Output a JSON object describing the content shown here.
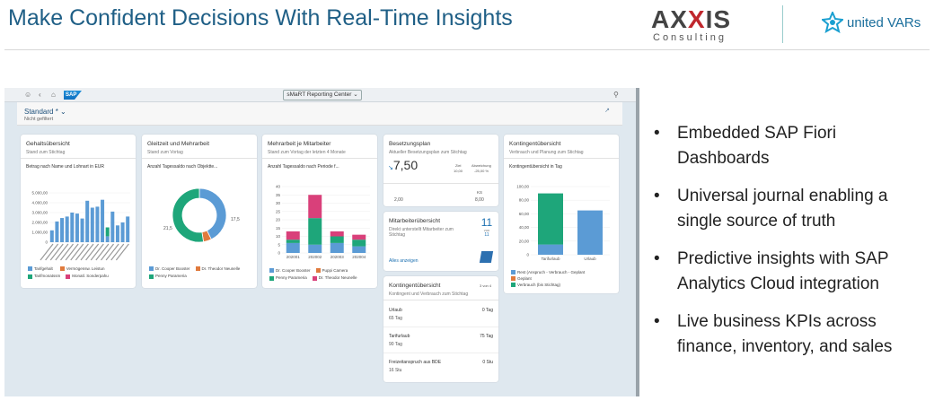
{
  "slide": {
    "title": "Make Confident Decisions With Real-Time Insights",
    "axxis_logo": "AXXIS",
    "axxis_sub": "Consulting",
    "united_vars": "united VARs",
    "bullets": [
      "Embedded SAP Fiori Dashboards",
      "Universal journal enabling a single source of truth",
      "Predictive insights with SAP Analytics Cloud integration",
      "Live business KPIs across finance, inventory, and sales"
    ]
  },
  "shell": {
    "logo": "SAP",
    "app_title": "sMaRT Reporting Center"
  },
  "filter": {
    "variant": "Standard *",
    "status": "Nicht gefiltert"
  },
  "cards": {
    "gehalt": {
      "title": "Gehaltsübersicht",
      "subtitle": "Stand zum Stichtag",
      "chart_title": "Betrag nach Name und Lohnart in EUR",
      "legend": [
        "Tarifgehalt",
        "Vermögensw. Leistun",
        "Tarifmonatssm",
        "Monatl. Sonderpahu"
      ]
    },
    "gleitzeit": {
      "title": "Gleitzeit und Mehrarbeit",
      "subtitle": "Stand zum Vortag",
      "chart_title": "Anzahl Tagessaldo nach Objektte...",
      "label_left": "21,5",
      "label_right": "17,5",
      "legend": [
        "Dr. Cooper Booster",
        "Dr. Theodor Neunelle",
        "Penny Parameria"
      ]
    },
    "mehrarbeit": {
      "title": "Mehrarbeit je Mitarbeiter",
      "subtitle": "Stand zum Vortag der letzten 4 Monate",
      "chart_title": "Anzahl Tagessaldo nach Periode f...",
      "legend": [
        "Dr. Cooper Booster",
        "Puppi Camera",
        "Penny Parameria",
        "Dr. Theodor Neunelle"
      ]
    },
    "besetzung": {
      "title": "Besetzungsplan",
      "subtitle": "Aktueller Besetzungsplan zum Stichtag",
      "kpi": "7,50",
      "ziel_label": "Ziel",
      "ziel_value": "10,00",
      "abw_label": "Abweichung",
      "abw_value": "-25,00 %",
      "left_value": "2,00",
      "right_top": "KS",
      "right_value": "8,00"
    },
    "mitarbeiter": {
      "title": "Mitarbeiterübersicht",
      "subtitle": "Direkt unterstellt Mitarbeiter zum Stichtag",
      "cal_number": "11",
      "cal_text": "von",
      "cal_sub": "11",
      "link": "Alles anzeigen"
    },
    "kontingent_list": {
      "title": "Kontingentübersicht",
      "subtitle": "Kontingent und Verbrauch zum Stichtag",
      "counter": "3 von 4",
      "rows": [
        {
          "name": "Urlaub",
          "value": "0 Tag",
          "sub": "65 Tag"
        },
        {
          "name": "Tarifurlaub",
          "value": "75 Tag",
          "sub": "90 Tag"
        },
        {
          "name": "Freizeitanspruch aus BDE",
          "value": "0 Stu",
          "sub": "16 Stu"
        }
      ]
    },
    "kontingent_chart": {
      "title": "Kontingentübersicht",
      "subtitle": "Verbrauch und Planung zum Stichtag",
      "chart_title": "Kontingentübersicht in Tag",
      "legend": [
        "Rest (Anspruch - Verbrauch - Geplant",
        "Geplant",
        "Verbrauch (bis Stichtag)"
      ]
    }
  },
  "chart_data": [
    {
      "type": "bar",
      "title": "Betrag nach Name und Lohnart in EUR",
      "ylim": [
        0,
        5000
      ],
      "y_ticks": [
        "0",
        "1.000,00",
        "2.000,00",
        "3.000,00",
        "4.000,00",
        "5.000,00"
      ],
      "series": [
        {
          "name": "Tarifgehalt",
          "values": [
            1200,
            2100,
            2450,
            2600,
            3000,
            2900,
            2400,
            4200,
            3500,
            3600,
            4300,
            600,
            3100,
            1700,
            2000,
            2600
          ]
        },
        {
          "name": "Vermögensw. Leistun",
          "values": [
            0,
            0,
            0,
            0,
            0,
            0,
            0,
            0,
            0,
            0,
            0,
            0,
            0,
            0,
            0,
            0
          ]
        },
        {
          "name": "Tarifmonatssm",
          "values": [
            0,
            0,
            0,
            0,
            0,
            0,
            0,
            0,
            0,
            0,
            0,
            900,
            0,
            0,
            0,
            0
          ]
        },
        {
          "name": "Monatl. Sonderpahu",
          "values": [
            0,
            0,
            0,
            0,
            0,
            0,
            0,
            0,
            0,
            0,
            0,
            0,
            0,
            0,
            0,
            0
          ]
        }
      ]
    },
    {
      "type": "pie",
      "title": "Anzahl Tagessaldo nach Objektte...",
      "categories": [
        "Dr. Cooper Booster",
        "Dr. Theodor Neunelle",
        "Penny Parameria"
      ],
      "values": [
        17.5,
        2,
        21.5
      ]
    },
    {
      "type": "bar",
      "title": "Anzahl Tagessaldo nach Periode f...",
      "categories": [
        "202001",
        "202002",
        "202003",
        "202004"
      ],
      "ylim": [
        0,
        40
      ],
      "y_ticks": [
        "0",
        "5",
        "10",
        "15",
        "20",
        "25",
        "30",
        "35",
        "40"
      ],
      "series": [
        {
          "name": "Dr. Cooper Booster",
          "values": [
            6,
            5,
            6,
            4
          ]
        },
        {
          "name": "Puppi Camera",
          "values": [
            0,
            0,
            0,
            0
          ]
        },
        {
          "name": "Penny Parameria",
          "values": [
            2,
            16,
            4,
            4
          ]
        },
        {
          "name": "Dr. Theodor Neunelle",
          "values": [
            5,
            14,
            3,
            3
          ]
        }
      ]
    },
    {
      "type": "bar",
      "title": "Kontingentübersicht in Tag",
      "categories": [
        "Tarifurlaub",
        "Urlaub"
      ],
      "ylim": [
        0,
        100
      ],
      "y_ticks": [
        "0",
        "20,00",
        "40,00",
        "60,00",
        "80,00",
        "100,00"
      ],
      "series": [
        {
          "name": "Rest (Anspruch - Verbrauch - Geplant",
          "values": [
            15,
            65
          ]
        },
        {
          "name": "Geplant",
          "values": [
            0,
            0
          ]
        },
        {
          "name": "Verbrauch (bis Stichtag)",
          "values": [
            75,
            0
          ]
        }
      ]
    }
  ],
  "colors": {
    "title_blue": "#1f5f86",
    "bar_blue": "#5b9bd5",
    "green": "#1ea67a",
    "orange": "#e07a3d",
    "pink": "#d9407a"
  }
}
